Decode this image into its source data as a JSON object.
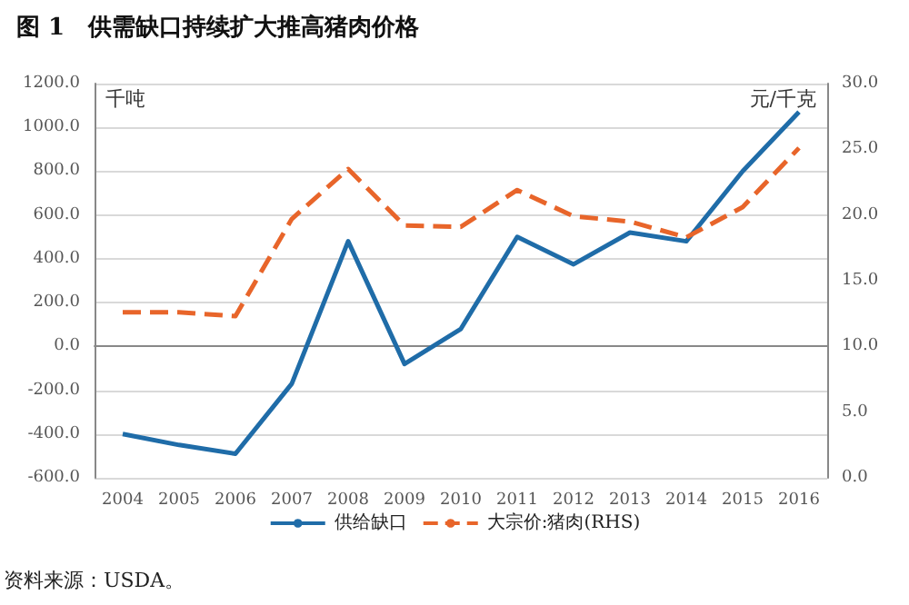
{
  "chart_data": {
    "type": "line",
    "title": "图 1　供需缺口持续扩大推高猪肉价格",
    "ylabel": "千吨",
    "y2label": "元/千克",
    "annotations": [
      "资料来源：USDA。"
    ],
    "categories": [
      "2004",
      "2005",
      "2006",
      "2007",
      "2008",
      "2009",
      "2010",
      "2011",
      "2012",
      "2013",
      "2014",
      "2015",
      "2016"
    ],
    "series": [
      {
        "name": "供给缺口",
        "color": "#1f6ca8",
        "values": [
          -400,
          -450,
          -490,
          -170,
          480,
          -80,
          80,
          500,
          375,
          520,
          480,
          800,
          1070
        ],
        "line_style": "solid"
      },
      {
        "name": "大宗价:猪肉(RHS)",
        "color": "#e8652a",
        "axis": "y2",
        "values": [
          12.6,
          12.6,
          12.3,
          19.7,
          23.5,
          19.2,
          19.1,
          21.9,
          19.9,
          19.5,
          18.3,
          20.6,
          25.1
        ],
        "line_style": "dashed"
      }
    ],
    "ylim": [
      -600,
      1200
    ],
    "yticks": [
      {
        "value": -600,
        "label": "-600.0"
      },
      {
        "value": -400,
        "label": "-400.0"
      },
      {
        "value": -200,
        "label": "-200.0"
      },
      {
        "value": 0,
        "label": "0.0"
      },
      {
        "value": 200,
        "label": "200.0"
      },
      {
        "value": 400,
        "label": "400.0"
      },
      {
        "value": 600,
        "label": "600.0"
      },
      {
        "value": 800,
        "label": "800.0"
      },
      {
        "value": 1000,
        "label": "1000.0"
      },
      {
        "value": 1200,
        "label": "1200.0"
      }
    ],
    "y2lim": [
      0,
      30
    ],
    "y2ticks": [
      {
        "value": 0,
        "label": "0.0"
      },
      {
        "value": 5,
        "label": "5.0"
      },
      {
        "value": 10,
        "label": "10.0"
      },
      {
        "value": 15,
        "label": "15.0"
      },
      {
        "value": 20,
        "label": "20.0"
      },
      {
        "value": 25,
        "label": "25.0"
      },
      {
        "value": 30,
        "label": "30.0"
      }
    ],
    "grid": "y",
    "legend": "bottom",
    "marker": "none"
  }
}
